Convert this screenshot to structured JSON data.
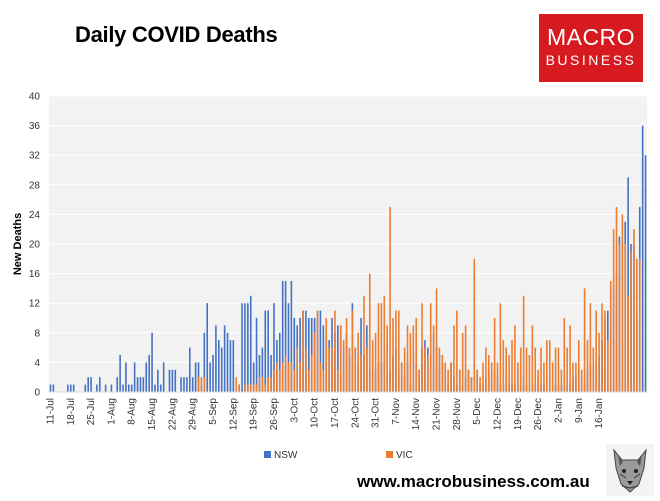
{
  "header": {
    "title": "Daily COVID Deaths"
  },
  "logo": {
    "line1": "MACRO",
    "line2": "BUSINESS",
    "color": "#d71920"
  },
  "footer": {
    "url": "www.macrobusiness.com.au"
  },
  "colors": {
    "nsw": "#4472c4",
    "vic": "#ed7d31",
    "plot_bg": "#f2f2f2",
    "grid": "#ffffff"
  },
  "chart_data": {
    "type": "bar",
    "title": "Daily COVID Deaths",
    "xlabel": "",
    "ylabel": "New Deaths",
    "ylim": [
      0,
      40
    ],
    "yticks": [
      0,
      4,
      8,
      12,
      16,
      20,
      24,
      28,
      32,
      36,
      40
    ],
    "grid": true,
    "legend_position": "bottom-center",
    "tick_labels": [
      "11-Jul",
      "18-Jul",
      "25-Jul",
      "1-Aug",
      "8-Aug",
      "15-Aug",
      "22-Aug",
      "29-Aug",
      "5-Sep",
      "12-Sep",
      "19-Sep",
      "26-Sep",
      "3-Oct",
      "10-Oct",
      "17-Oct",
      "24-Oct",
      "31-Oct",
      "7-Nov",
      "14-Nov",
      "21-Nov",
      "28-Nov",
      "5-Dec",
      "12-Dec",
      "19-Dec",
      "26-Dec",
      "2-Jan",
      "9-Jan",
      "16-Jan"
    ],
    "series": [
      {
        "name": "NSW",
        "values": [
          1,
          1,
          0,
          0,
          0,
          0,
          1,
          1,
          1,
          0,
          0,
          0,
          1,
          2,
          2,
          0,
          1,
          2,
          0,
          1,
          0,
          1,
          0,
          2,
          5,
          1,
          4,
          1,
          1,
          4,
          2,
          2,
          2,
          4,
          5,
          8,
          1,
          3,
          1,
          4,
          0,
          3,
          3,
          3,
          0,
          2,
          2,
          2,
          6,
          2,
          4,
          4,
          1,
          8,
          12,
          4,
          5,
          9,
          7,
          6,
          9,
          8,
          7,
          7,
          0,
          1,
          12,
          12,
          12,
          13,
          4,
          10,
          5,
          6,
          11,
          11,
          5,
          12,
          7,
          8,
          15,
          15,
          12,
          15,
          10,
          9,
          10,
          11,
          11,
          10,
          10,
          10,
          11,
          11,
          9,
          8,
          7,
          10,
          8,
          9,
          9,
          6,
          8,
          5,
          12,
          6,
          4,
          10,
          5,
          9,
          3,
          5,
          3,
          4,
          4,
          5,
          6,
          3,
          5,
          6,
          3,
          4,
          2,
          4,
          1,
          5,
          4,
          3,
          6,
          7,
          6,
          5,
          8,
          6,
          5,
          4,
          3,
          1,
          4,
          2,
          1,
          3,
          1,
          2,
          3,
          2,
          2,
          3,
          1,
          1,
          2,
          3,
          2,
          3,
          2,
          1,
          1,
          2,
          1,
          1,
          1,
          3,
          1,
          2,
          1,
          0,
          1,
          1,
          2,
          1,
          1,
          0,
          2,
          0,
          1,
          1,
          1,
          1,
          1,
          1,
          2,
          2,
          3,
          2,
          1,
          3,
          4,
          3,
          4,
          5,
          7,
          10,
          11,
          9,
          14,
          16,
          21,
          20,
          23,
          29,
          20,
          20,
          10,
          25,
          36,
          32
        ]
      },
      {
        "name": "VIC",
        "values": [
          0,
          0,
          0,
          0,
          0,
          0,
          0,
          0,
          0,
          0,
          0,
          0,
          0,
          0,
          0,
          0,
          0,
          0,
          0,
          0,
          0,
          0,
          0,
          0,
          0,
          0,
          0,
          0,
          0,
          0,
          0,
          0,
          0,
          0,
          0,
          0,
          0,
          0,
          0,
          0,
          0,
          0,
          0,
          0,
          0,
          0,
          0,
          0,
          0,
          0,
          0,
          2,
          2,
          2,
          0,
          0,
          0,
          0,
          0,
          0,
          0,
          0,
          0,
          0,
          2,
          1,
          0,
          1,
          1,
          1,
          1,
          1,
          2,
          2,
          1,
          2,
          2,
          3,
          4,
          3,
          4,
          5,
          4,
          4,
          3,
          6,
          4,
          11,
          6,
          3,
          5,
          8,
          11,
          4,
          3,
          10,
          6,
          6,
          11,
          3,
          9,
          7,
          10,
          6,
          11,
          6,
          8,
          5,
          13,
          6,
          16,
          7,
          8,
          12,
          12,
          13,
          9,
          25,
          10,
          11,
          11,
          4,
          6,
          9,
          8,
          9,
          10,
          3,
          12,
          6,
          5,
          12,
          9,
          14,
          6,
          5,
          4,
          3,
          4,
          9,
          11,
          3,
          8,
          9,
          3,
          2,
          18,
          3,
          2,
          4,
          6,
          5,
          4,
          10,
          4,
          12,
          7,
          6,
          5,
          7,
          9,
          4,
          6,
          13,
          6,
          5,
          9,
          6,
          3,
          6,
          4,
          7,
          7,
          4,
          6,
          6,
          3,
          10,
          6,
          9,
          4,
          4,
          7,
          3,
          14,
          7,
          12,
          6,
          11,
          8,
          12,
          11,
          7,
          15,
          22,
          25,
          20,
          24,
          20,
          13,
          19,
          22,
          18,
          18
        ]
      }
    ]
  }
}
